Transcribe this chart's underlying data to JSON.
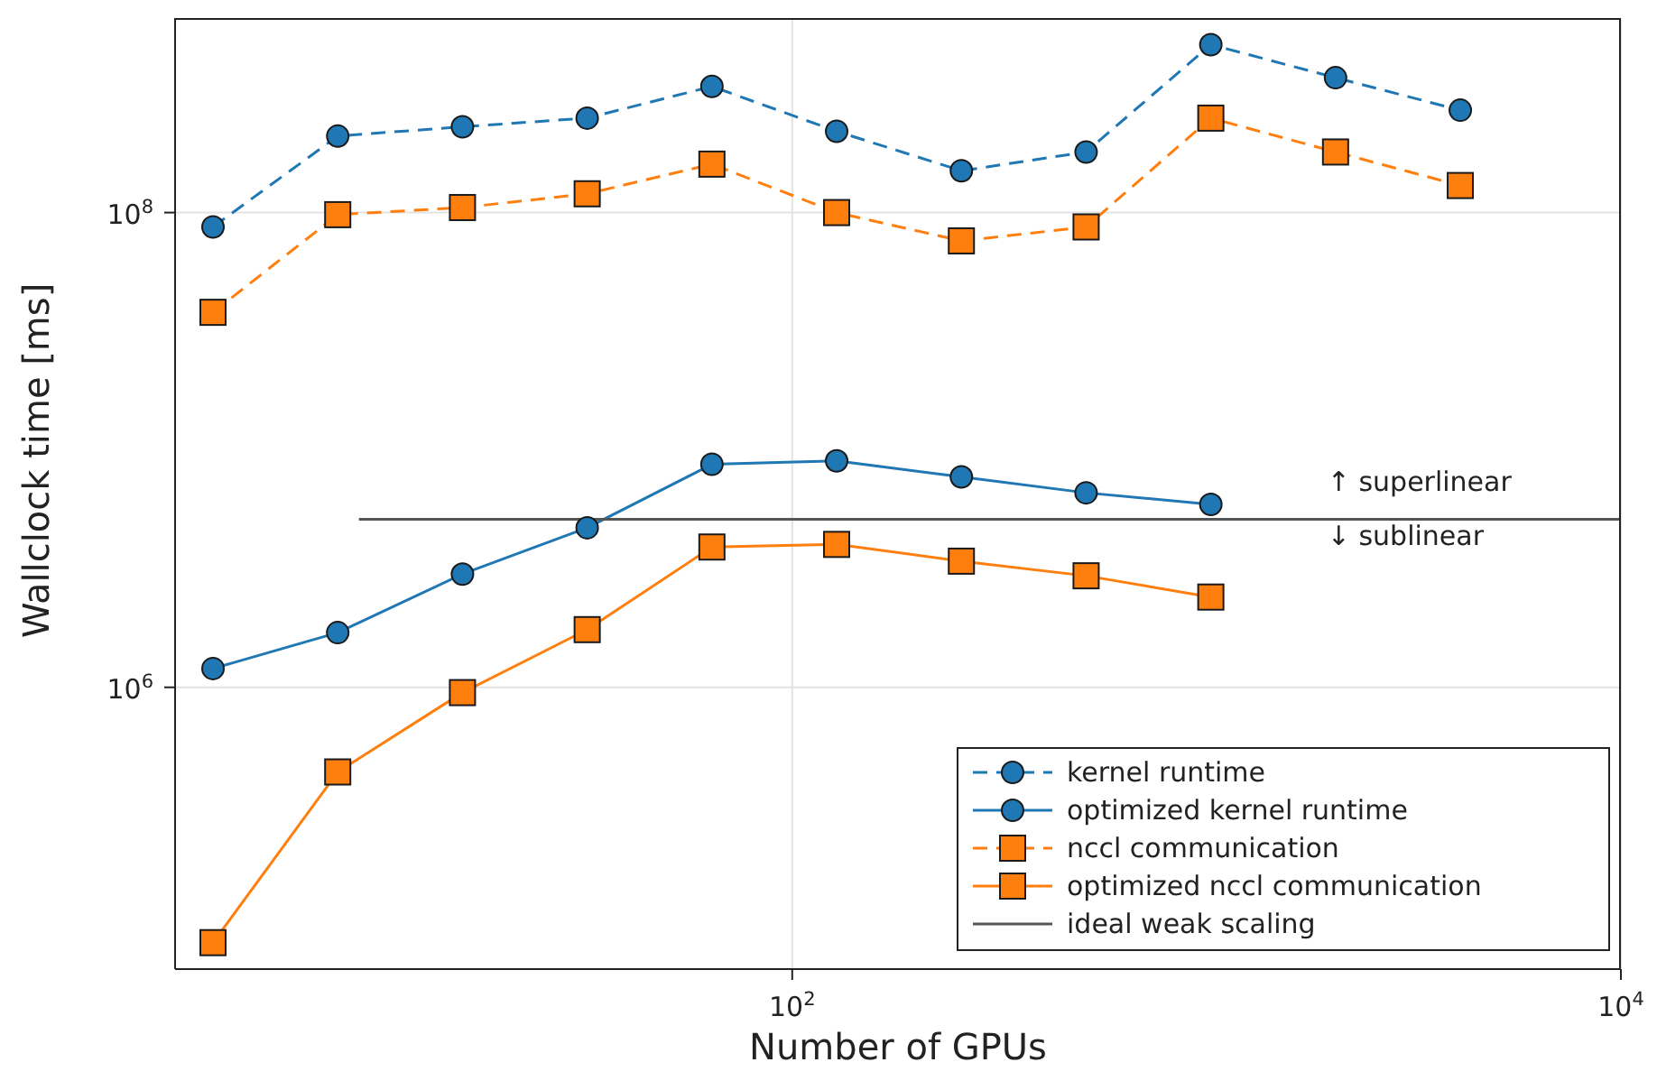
{
  "chart_data": {
    "type": "line",
    "xlabel": "Number of GPUs",
    "ylabel": "Wallclock time [ms]",
    "log": "xy",
    "grid": true,
    "legend": "bottom right",
    "xlim": [
      3.24,
      10000
    ],
    "xticks": [
      {
        "value": 100,
        "label": "10$^{2}$"
      },
      {
        "value": 10000,
        "label": "10$^{4}$"
      }
    ],
    "ylim": [
      65000,
      660000000
    ],
    "yticks": [
      {
        "value": 1000000,
        "label": "10$^{6}$"
      },
      {
        "value": 100000000,
        "label": "10$^{8}$"
      }
    ],
    "series": [
      {
        "name": "kernel runtime",
        "color": "#1f77b4",
        "marker": "circle",
        "line_style": "dashed",
        "x": [
          4,
          8,
          16,
          32,
          64,
          128,
          256,
          512,
          1024,
          2048,
          4096
        ],
        "values": [
          87000000,
          210000000,
          230000000,
          250000000,
          340000000,
          220000000,
          150000000,
          180000000,
          510000000,
          370000000,
          270000000
        ]
      },
      {
        "name": "optimized kernel runtime",
        "color": "#1f77b4",
        "marker": "circle",
        "line_style": "solid",
        "x": [
          4,
          8,
          16,
          32,
          64,
          128,
          256,
          512,
          1024
        ],
        "values": [
          1200000,
          1700000,
          3000000,
          4700000,
          8700000,
          9000000,
          7700000,
          6600000,
          5900000
        ]
      },
      {
        "name": "nccl communication",
        "color": "#ff7f0e",
        "marker": "square",
        "line_style": "dashed",
        "x": [
          4,
          8,
          16,
          32,
          64,
          128,
          256,
          512,
          1024,
          2048,
          4096
        ],
        "values": [
          38000000,
          98000000,
          105000000,
          120000000,
          160000000,
          100000000,
          76000000,
          87000000,
          250000000,
          180000000,
          130000000
        ]
      },
      {
        "name": "optimized nccl communication",
        "color": "#ff7f0e",
        "marker": "square",
        "line_style": "solid",
        "x": [
          4,
          8,
          16,
          32,
          64,
          128,
          256,
          512,
          1024
        ],
        "values": [
          84000,
          440000,
          950000,
          1750000,
          3900000,
          4000000,
          3400000,
          2950000,
          2400000
        ]
      },
      {
        "name": "ideal weak scaling",
        "color": "#555555",
        "marker": "none",
        "line_style": "solid",
        "x": [
          9,
          10000
        ],
        "values": [
          5100000,
          5100000
        ]
      }
    ],
    "annotations": [
      "↑ superlinear",
      "↓ sublinear"
    ]
  }
}
